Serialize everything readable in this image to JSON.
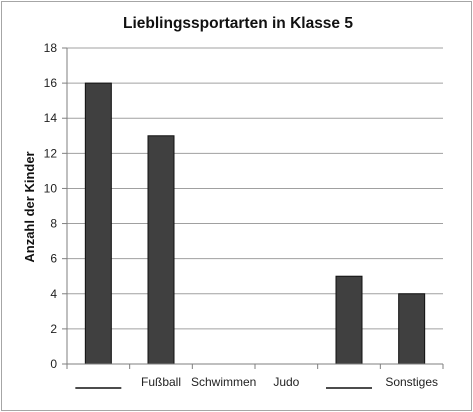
{
  "chart_data": {
    "type": "bar",
    "title": "Lieblingssportarten in Klasse 5",
    "ylabel": "Anzahl der Kinder",
    "xlabel": "",
    "categories": [
      "",
      "Fußball",
      "Schwimmen",
      "Judo",
      "",
      "Sonstiges"
    ],
    "blank_categories": [
      0,
      4
    ],
    "values": [
      16,
      13,
      0,
      0,
      5,
      4
    ],
    "ylim": [
      0,
      18
    ],
    "yticks": [
      0,
      2,
      4,
      6,
      8,
      10,
      12,
      14,
      16,
      18
    ],
    "grid": true,
    "legend": "none",
    "colors": {
      "bar": "#404040",
      "bar_edge": "#111111",
      "grid": "#a0a0a0",
      "axis": "#7f7f7f"
    }
  }
}
